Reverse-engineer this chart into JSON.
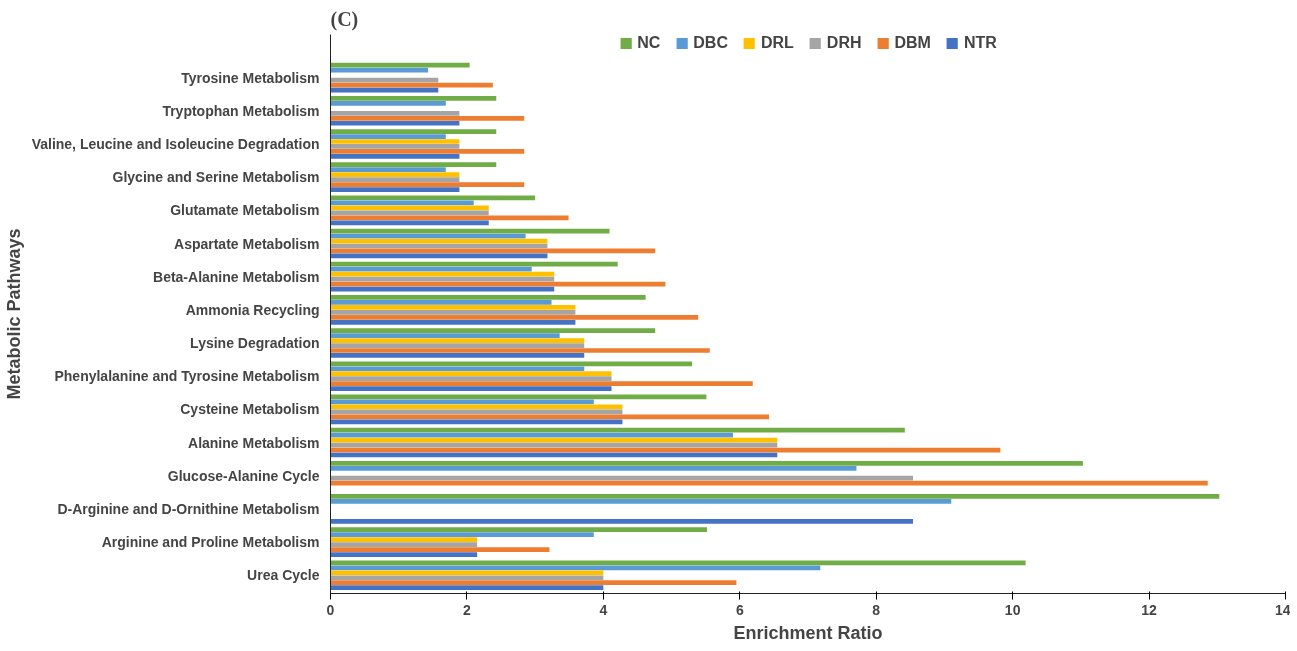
{
  "chart_data": {
    "type": "bar",
    "orientation": "horizontal",
    "title": "(C)",
    "xlabel": "Enrichment Ratio",
    "ylabel": "Metabolic Pathways",
    "categories": [
      "Tyrosine Metabolism",
      "Tryptophan Metabolism",
      "Valine, Leucine and Isoleucine Degradation",
      "Glycine and Serine Metabolism",
      "Glutamate Metabolism",
      "Aspartate Metabolism",
      "Beta-Alanine Metabolism",
      "Ammonia Recycling",
      "Lysine Degradation",
      "Phenylalanine and Tyrosine Metabolism",
      "Cysteine Metabolism",
      "Alanine Metabolism",
      "Glucose-Alanine Cycle",
      "D-Arginine and D-Ornithine Metabolism",
      "Arginine and Proline Metabolism",
      "Urea Cycle"
    ],
    "series": [
      {
        "name": "NC",
        "color": "#70ad47",
        "values": [
          2.04,
          2.43,
          2.43,
          2.43,
          3.0,
          4.09,
          4.21,
          4.62,
          4.76,
          5.3,
          5.51,
          8.42,
          11.03,
          13.03,
          5.52,
          10.19
        ]
      },
      {
        "name": "DBC",
        "color": "#5b9bd5",
        "values": [
          1.43,
          1.69,
          1.69,
          1.69,
          2.1,
          2.86,
          2.95,
          3.24,
          3.36,
          3.72,
          3.86,
          5.9,
          7.71,
          9.1,
          3.86,
          7.18
        ]
      },
      {
        "name": "DRL",
        "color": "#ffc000",
        "values": [
          null,
          null,
          1.89,
          1.89,
          2.32,
          3.18,
          3.28,
          3.59,
          3.72,
          4.12,
          4.28,
          6.55,
          null,
          null,
          2.15,
          4.0
        ]
      },
      {
        "name": "DRH",
        "color": "#a5a5a5",
        "values": [
          1.58,
          1.89,
          1.89,
          1.89,
          2.32,
          3.18,
          3.28,
          3.59,
          3.72,
          4.12,
          4.28,
          6.55,
          8.54,
          null,
          2.15,
          4.0
        ]
      },
      {
        "name": "DBM",
        "color": "#ed7d31",
        "values": [
          2.38,
          2.84,
          2.84,
          2.84,
          3.49,
          4.76,
          4.91,
          5.39,
          5.56,
          6.19,
          6.43,
          9.82,
          12.86,
          null,
          3.21,
          5.95
        ]
      },
      {
        "name": "NTR",
        "color": "#4472c4",
        "values": [
          1.58,
          1.89,
          1.89,
          1.89,
          2.32,
          3.18,
          3.28,
          3.59,
          3.72,
          4.12,
          4.28,
          6.55,
          null,
          8.54,
          2.15,
          4.0
        ]
      }
    ],
    "xlim": [
      0,
      14
    ],
    "xticks": [
      0,
      2,
      4,
      6,
      8,
      10,
      12,
      14
    ],
    "grid": false,
    "legend": "top"
  }
}
